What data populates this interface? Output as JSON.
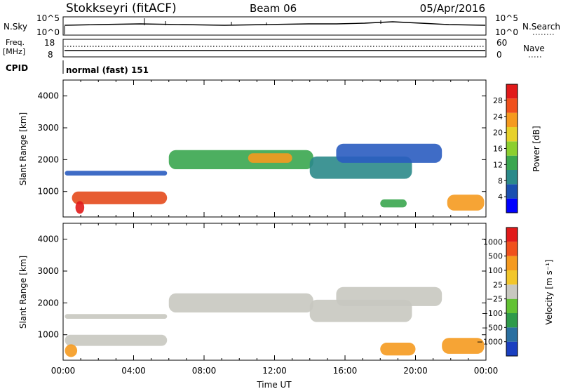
{
  "header": {
    "station": "Stokkseyri (fitACF)",
    "beam": "Beam 06",
    "date": "05/Apr/2016"
  },
  "noise_panel": {
    "left_label": "N.Sky",
    "right_label": "N.Search",
    "left_ticks": [
      "10^5",
      "10^0"
    ],
    "right_ticks": [
      "10^5",
      "10^0"
    ],
    "line_color": "#000000"
  },
  "freq_panel": {
    "left_label_line1": "Freq.",
    "left_label_line2": "[MHz]",
    "right_label": "Nave",
    "left_ticks": [
      "18",
      "8"
    ],
    "right_ticks": [
      "60",
      "0"
    ]
  },
  "cpid": {
    "label": "CPID",
    "text": "normal (fast) 151"
  },
  "chart_data": [
    {
      "type": "heatmap",
      "name": "power",
      "ylabel": "Slant Range [km]",
      "yticks": [
        "4000",
        "3000",
        "2000",
        "1000"
      ],
      "ylim": [
        200,
        4500
      ],
      "xlim": [
        0,
        24
      ],
      "colorbar": {
        "label": "Power [dB]",
        "ticks": [
          "28",
          "24",
          "20",
          "16",
          "12",
          "8",
          "4"
        ],
        "colors": [
          "#0000ff",
          "#1a4fb0",
          "#2b8a8a",
          "#3aa64f",
          "#8ccf2e",
          "#e7d12a",
          "#f59a1f",
          "#f0501c",
          "#e11a1a"
        ]
      },
      "regions": [
        {
          "t0": 0.5,
          "t1": 5.9,
          "r0": 600,
          "r1": 1000,
          "color": "#e44a1c"
        },
        {
          "t0": 0.7,
          "t1": 1.2,
          "r0": 300,
          "r1": 700,
          "color": "#e11a1a"
        },
        {
          "t0": 0.1,
          "t1": 5.9,
          "r0": 1500,
          "r1": 1650,
          "color": "#2a5cc0"
        },
        {
          "t0": 6.0,
          "t1": 14.2,
          "r0": 1700,
          "r1": 2300,
          "color": "#3aa64f"
        },
        {
          "t0": 10.5,
          "t1": 13.0,
          "r0": 1900,
          "r1": 2200,
          "color": "#f59a1f"
        },
        {
          "t0": 14.0,
          "t1": 19.8,
          "r0": 1400,
          "r1": 2100,
          "color": "#2b8a8a"
        },
        {
          "t0": 15.5,
          "t1": 21.5,
          "r0": 1900,
          "r1": 2500,
          "color": "#2a5cc0"
        },
        {
          "t0": 18.0,
          "t1": 19.5,
          "r0": 500,
          "r1": 750,
          "color": "#3aa64f"
        },
        {
          "t0": 21.8,
          "t1": 23.9,
          "r0": 400,
          "r1": 900,
          "color": "#f59a1f"
        }
      ]
    },
    {
      "type": "heatmap",
      "name": "velocity",
      "xlabel": "Time UT",
      "ylabel": "Slant Range [km]",
      "yticks": [
        "4000",
        "3000",
        "2000",
        "1000"
      ],
      "xticks": [
        "00:00",
        "04:00",
        "08:00",
        "12:00",
        "16:00",
        "20:00",
        "00:00"
      ],
      "ylim": [
        200,
        4500
      ],
      "xlim": [
        0,
        24
      ],
      "colorbar": {
        "label": "Velocity [m s⁻¹]",
        "ticks": [
          "1000",
          "500",
          "100",
          "25",
          "−25",
          "−100",
          "−500",
          "−1000"
        ],
        "colors": [
          "#1a3fc0",
          "#2a6fa0",
          "#2e9a4a",
          "#62c233",
          "#c8c8c0",
          "#f2c62a",
          "#f59a1f",
          "#f0501c",
          "#e11a1a"
        ]
      },
      "regions": [
        {
          "t0": 0.1,
          "t1": 5.9,
          "r0": 650,
          "r1": 1000,
          "color": "#c8c8c0"
        },
        {
          "t0": 0.1,
          "t1": 0.8,
          "r0": 300,
          "r1": 700,
          "color": "#f59a1f"
        },
        {
          "t0": 0.1,
          "t1": 5.9,
          "r0": 1500,
          "r1": 1650,
          "color": "#c8c8c0"
        },
        {
          "t0": 6.0,
          "t1": 14.2,
          "r0": 1700,
          "r1": 2300,
          "color": "#c8c8c0"
        },
        {
          "t0": 14.0,
          "t1": 19.8,
          "r0": 1400,
          "r1": 2100,
          "color": "#c8c8c0"
        },
        {
          "t0": 15.5,
          "t1": 21.5,
          "r0": 1900,
          "r1": 2500,
          "color": "#c8c8c0"
        },
        {
          "t0": 18.0,
          "t1": 20.0,
          "r0": 350,
          "r1": 750,
          "color": "#f59a1f"
        },
        {
          "t0": 21.5,
          "t1": 23.9,
          "r0": 400,
          "r1": 900,
          "color": "#f59a1f"
        }
      ]
    }
  ]
}
